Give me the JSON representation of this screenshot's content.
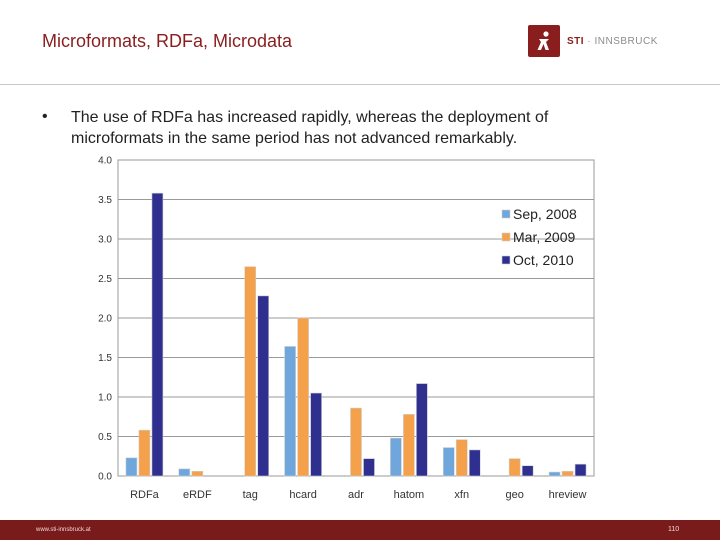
{
  "slide": {
    "title": "Microformats, RDFa, Microdata",
    "bullet": "The use of RDFa has increased rapidly, whereas the deployment of microformats in the same period has not advanced remarkably.",
    "footer_url": "www.sti-innsbruck.at",
    "page_number": "110"
  },
  "logo": {
    "brand": "STI",
    "separator": "·",
    "place": "INNSBRUCK",
    "colors": {
      "accent": "#8a1d1d",
      "text": "#8c8c8c"
    }
  },
  "chart_data": {
    "type": "bar",
    "categories": [
      "RDFa",
      "eRDF",
      "tag",
      "hcard",
      "adr",
      "hatom",
      "xfn",
      "geo",
      "hreview"
    ],
    "series": [
      {
        "name": "Sep, 2008",
        "color": "#6fa6dc",
        "values": [
          0.23,
          0.09,
          0.0,
          1.64,
          0.0,
          0.48,
          0.36,
          0.0,
          0.05
        ]
      },
      {
        "name": "Mar, 2009",
        "color": "#f5a04a",
        "values": [
          0.58,
          0.06,
          2.65,
          2.0,
          0.86,
          0.78,
          0.46,
          0.22,
          0.06
        ]
      },
      {
        "name": "Oct, 2010",
        "color": "#2e2f8f",
        "values": [
          3.58,
          0.0,
          2.28,
          1.05,
          0.22,
          1.17,
          0.33,
          0.13,
          0.15
        ]
      }
    ],
    "ylim": [
      0,
      4.0
    ],
    "yticks": [
      "0.0",
      "0.5",
      "1.0",
      "1.5",
      "2.0",
      "2.5",
      "3.0",
      "3.5",
      "4.0"
    ],
    "grid": true,
    "legend": "top-right",
    "title": "",
    "xlabel": "",
    "ylabel": ""
  }
}
